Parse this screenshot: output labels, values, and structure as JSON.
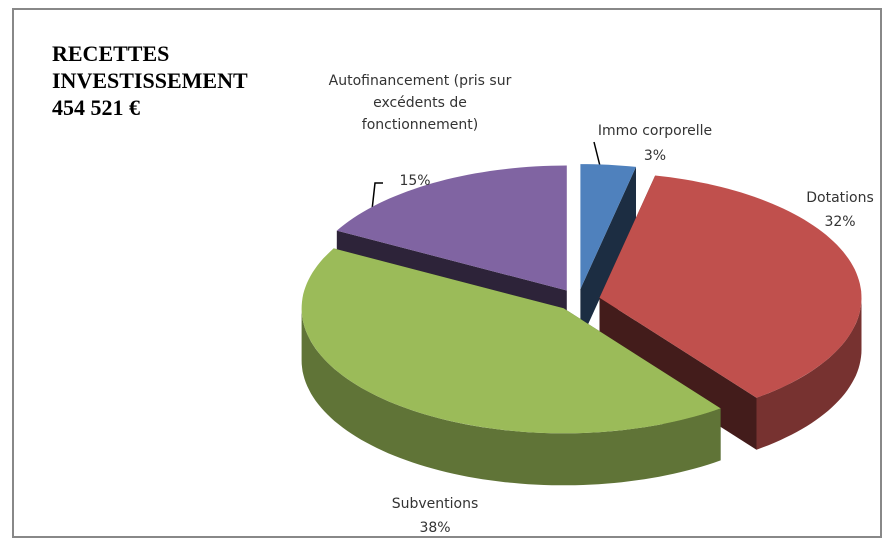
{
  "chart_data": {
    "type": "pie3d",
    "title": "RECETTES INVESTISSEMENT",
    "subtitle": "454 521 €",
    "categories": [
      "Immo corporelle",
      "Dotations",
      "Subventions",
      "Autofinancement (pris sur excédents de fonctionnement)"
    ],
    "values": [
      3,
      32,
      38,
      15
    ],
    "value_labels": [
      "3%",
      "32%",
      "38%",
      "15%"
    ],
    "colors": [
      "#4f81bd",
      "#c0504d",
      "#9bbb59",
      "#8064a2"
    ]
  }
}
